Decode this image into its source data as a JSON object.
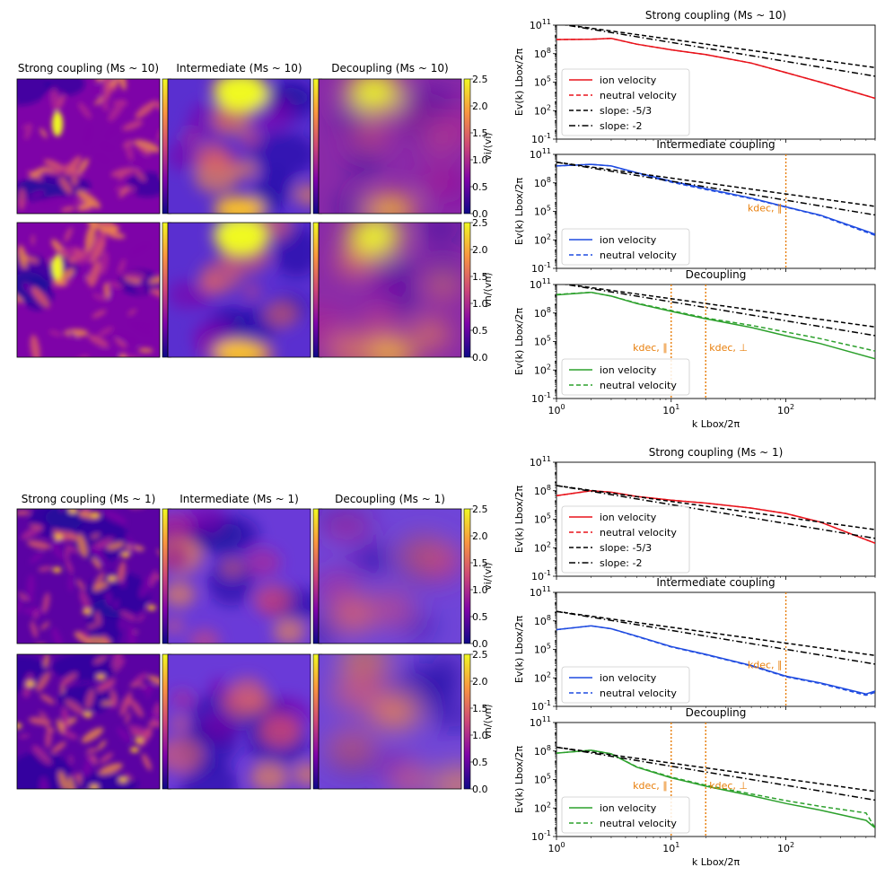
{
  "colors": {
    "ion_strong": "#e8141c",
    "ion_intermediate": "#1f4be0",
    "ion_decoupling": "#2ca02c",
    "slope_lines": "#000000",
    "k_dec_marker": "#e87e0a"
  },
  "maps": {
    "groups": [
      {
        "panel_titles": [
          "Strong coupling ($M_s\\sim10$)",
          "Intermediate ($M_s\\sim10$)",
          "Decoupling ($M_s\\sim10$)"
        ],
        "title_text": [
          "Strong coupling (Ms ~ 10)",
          "Intermediate (Ms ~ 10)",
          "Decoupling (Ms ~ 10)"
        ],
        "rows": [
          {
            "quantity": "v_i/<v_i>",
            "label": "vi/⟨vi⟩"
          },
          {
            "quantity": "v_n/<v_n>",
            "label": "vn/⟨vn⟩"
          }
        ],
        "colorbar_ticks": [
          "0.0",
          "0.5",
          "1.0",
          "1.5",
          "2.0",
          "2.5"
        ],
        "colormap": "plasma"
      },
      {
        "title_text": [
          "Strong coupling (Ms ~ 1)",
          "Intermediate (Ms ~ 1)",
          "Decoupling (Ms ~ 1)"
        ],
        "rows": [
          {
            "quantity": "v_i/<v_i>",
            "label": "vi/⟨vi⟩"
          },
          {
            "quantity": "v_n/<v_n>",
            "label": "vn/⟨vn⟩"
          }
        ],
        "colorbar_ticks": [
          "0.0",
          "0.5",
          "1.0",
          "1.5",
          "2.0",
          "2.5"
        ],
        "colormap": "plasma"
      }
    ]
  },
  "chart_data": [
    {
      "type": "line",
      "title": "Strong coupling (Ms ~ 10)",
      "xlabel": "",
      "ylabel": "Ev(k) Lbox/2π",
      "xscale": "log",
      "yscale": "log",
      "xlim": [
        1,
        600
      ],
      "ylim": [
        0.1,
        100000000000.0
      ],
      "y_ticks": [
        "10^11",
        "10^8",
        "10^5",
        "10^2",
        "10^-1"
      ],
      "series": [
        {
          "name": "ion velocity",
          "style": "solid",
          "color": "#e8141c",
          "x": [
            1,
            2,
            3,
            5,
            10,
            20,
            50,
            100,
            200,
            600
          ],
          "y": [
            3000000000.0,
            3300000000.0,
            4000000000.0,
            1000000000.0,
            250000000.0,
            80000000.0,
            10000000.0,
            1000000.0,
            100000.0,
            2000.0
          ]
        },
        {
          "name": "neutral velocity",
          "style": "dashed",
          "color": "#e8141c",
          "x": [
            1,
            2,
            3,
            5,
            10,
            20,
            50,
            100,
            200,
            600
          ],
          "y": [
            3000000000.0,
            3300000000.0,
            4000000000.0,
            1000000000.0,
            250000000.0,
            80000000.0,
            10000000.0,
            1000000.0,
            100000.0,
            2000.0
          ]
        },
        {
          "name": "slope: -5/3",
          "style": "dashed",
          "color": "#000000",
          "x": [
            1,
            600
          ],
          "y": [
            150000000000.0,
            3400000.0
          ]
        },
        {
          "name": "slope: -2",
          "style": "dashdot",
          "color": "#000000",
          "x": [
            1,
            600
          ],
          "y": [
            150000000000.0,
            420000.0
          ]
        }
      ],
      "legend": [
        "ion velocity",
        "neutral velocity",
        "slope: -5/3",
        "slope: -2"
      ],
      "legend_loc": "lower-left",
      "vlines": []
    },
    {
      "type": "line",
      "title": "Intermediate coupling",
      "xlabel": "",
      "ylabel": "Ev(k) Lbox/2π",
      "xscale": "log",
      "yscale": "log",
      "xlim": [
        1,
        600
      ],
      "ylim": [
        0.1,
        100000000000.0
      ],
      "y_ticks": [
        "10^11",
        "10^8",
        "10^5",
        "10^2",
        "10^-1"
      ],
      "series": [
        {
          "name": "ion velocity",
          "style": "solid",
          "color": "#1f4be0",
          "x": [
            1,
            2,
            3,
            5,
            10,
            20,
            50,
            100,
            200,
            600
          ],
          "y": [
            6000000000.0,
            9000000000.0,
            6000000000.0,
            1200000000.0,
            150000000.0,
            25000000.0,
            2500000.0,
            300000.0,
            40000.0,
            400.0
          ]
        },
        {
          "name": "neutral velocity",
          "style": "dashed",
          "color": "#1f4be0",
          "x": [
            1,
            2,
            3,
            5,
            10,
            20,
            50,
            100,
            200,
            600
          ],
          "y": [
            6000000000.0,
            9000000000.0,
            6000000000.0,
            1000000000.0,
            120000000.0,
            20000000.0,
            2200000.0,
            280000.0,
            35000.0,
            300.0
          ]
        },
        {
          "name": "slope: -5/3",
          "style": "dashed",
          "color": "#000000",
          "x": [
            1,
            600
          ],
          "y": [
            15000000000.0,
            340000.0
          ]
        },
        {
          "name": "slope: -2",
          "style": "dashdot",
          "color": "#000000",
          "x": [
            1,
            600
          ],
          "y": [
            15000000000.0,
            42000.0
          ]
        }
      ],
      "legend": [
        "ion velocity",
        "neutral velocity"
      ],
      "legend_loc": "lower-left",
      "vlines": [
        {
          "x": 100,
          "label": "kdec, ∥"
        }
      ]
    },
    {
      "type": "line",
      "title": "Decoupling",
      "xlabel": "k Lbox/2π",
      "ylabel": "Ev(k) Lbox/2π",
      "xscale": "log",
      "yscale": "log",
      "xlim": [
        1,
        600
      ],
      "ylim": [
        0.1,
        100000000000.0
      ],
      "y_ticks": [
        "10^11",
        "10^8",
        "10^5",
        "10^2",
        "10^-1"
      ],
      "x_ticks": [
        "10^0",
        "10^1",
        "10^2"
      ],
      "series": [
        {
          "name": "ion velocity",
          "style": "solid",
          "color": "#2ca02c",
          "x": [
            1,
            2,
            3,
            5,
            10,
            20,
            50,
            100,
            200,
            600
          ],
          "y": [
            8000000000.0,
            15000000000.0,
            6000000000.0,
            1000000000.0,
            150000000.0,
            25000000.0,
            3000000.0,
            400000.0,
            60000.0,
            1500.0
          ]
        },
        {
          "name": "neutral velocity",
          "style": "dashed",
          "color": "#2ca02c",
          "x": [
            1,
            2,
            3,
            5,
            10,
            20,
            50,
            100,
            200,
            600
          ],
          "y": [
            9000000000.0,
            15000000000.0,
            6000000000.0,
            1100000000.0,
            180000000.0,
            30000000.0,
            5000000.0,
            1000000.0,
            200000.0,
            10000.0
          ]
        },
        {
          "name": "slope: -5/3",
          "style": "dashed",
          "color": "#000000",
          "x": [
            1,
            600
          ],
          "y": [
            150000000000.0,
            3400000.0
          ]
        },
        {
          "name": "slope: -2",
          "style": "dashdot",
          "color": "#000000",
          "x": [
            1,
            600
          ],
          "y": [
            150000000000.0,
            420000.0
          ]
        }
      ],
      "legend": [
        "ion velocity",
        "neutral velocity"
      ],
      "legend_loc": "lower-left",
      "vlines": [
        {
          "x": 10,
          "label": "kdec, ∥"
        },
        {
          "x": 20,
          "label": "kdec, ⊥"
        }
      ]
    },
    {
      "type": "line",
      "title": "Strong coupling (Ms ~ 1)",
      "xlabel": "",
      "ylabel": "Ev(k) Lbox/2π",
      "xscale": "log",
      "yscale": "log",
      "xlim": [
        1,
        600
      ],
      "ylim": [
        0.1,
        100000000000.0
      ],
      "y_ticks": [
        "10^11",
        "10^8",
        "10^5",
        "10^2",
        "10^-1"
      ],
      "series": [
        {
          "name": "ion velocity",
          "style": "solid",
          "color": "#e8141c",
          "x": [
            1,
            2,
            3,
            5,
            10,
            20,
            50,
            100,
            200,
            600
          ],
          "y": [
            30000000.0,
            100000000.0,
            70000000.0,
            25000000.0,
            10000000.0,
            5000000.0,
            1500000.0,
            400000.0,
            50000.0,
            300.0
          ]
        },
        {
          "name": "neutral velocity",
          "style": "dashed",
          "color": "#e8141c",
          "x": [
            1,
            2,
            3,
            5,
            10,
            20,
            50,
            100,
            200,
            600
          ],
          "y": [
            30000000.0,
            100000000.0,
            70000000.0,
            25000000.0,
            10000000.0,
            5000000.0,
            1500000.0,
            400000.0,
            50000.0,
            300.0
          ]
        },
        {
          "name": "slope: -5/3",
          "style": "dashed",
          "color": "#000000",
          "x": [
            1,
            600
          ],
          "y": [
            350000000.0,
            8000.0
          ]
        },
        {
          "name": "slope: -2",
          "style": "dashdot",
          "color": "#000000",
          "x": [
            1,
            600
          ],
          "y": [
            350000000.0,
            970.0
          ]
        }
      ],
      "legend": [
        "ion velocity",
        "neutral velocity",
        "slope: -5/3",
        "slope: -2"
      ],
      "legend_loc": "lower-left",
      "vlines": []
    },
    {
      "type": "line",
      "title": "Intermediate coupling",
      "xlabel": "",
      "ylabel": "Ev(k) Lbox/2π",
      "xscale": "log",
      "yscale": "log",
      "xlim": [
        1,
        600
      ],
      "ylim": [
        0.1,
        100000000000.0
      ],
      "y_ticks": [
        "10^11",
        "10^8",
        "10^5",
        "10^2",
        "10^-1"
      ],
      "series": [
        {
          "name": "ion velocity",
          "style": "solid",
          "color": "#1f4be0",
          "x": [
            1,
            2,
            3,
            5,
            10,
            20,
            50,
            100,
            200,
            500,
            600
          ],
          "y": [
            12000000.0,
            30000000.0,
            15000000.0,
            2500000.0,
            200000.0,
            30000.0,
            2000.0,
            150.0,
            30.0,
            2,
            4
          ]
        },
        {
          "name": "neutral velocity",
          "style": "dashed",
          "color": "#1f4be0",
          "x": [
            1,
            2,
            3,
            5,
            10,
            20,
            50,
            100,
            200,
            500,
            600
          ],
          "y": [
            12000000.0,
            30000000.0,
            15000000.0,
            2300000.0,
            180000.0,
            27000.0,
            1800.0,
            130.0,
            25.0,
            1.5,
            3
          ]
        },
        {
          "name": "slope: -5/3",
          "style": "dashed",
          "color": "#000000",
          "x": [
            1,
            600
          ],
          "y": [
            1000000000.0,
            23000.0
          ]
        },
        {
          "name": "slope: -2",
          "style": "dashdot",
          "color": "#000000",
          "x": [
            1,
            600
          ],
          "y": [
            1000000000.0,
            2800.0
          ]
        }
      ],
      "legend": [
        "ion velocity",
        "neutral velocity"
      ],
      "legend_loc": "lower-left",
      "vlines": [
        {
          "x": 100,
          "label": "kdec, ∥"
        }
      ]
    },
    {
      "type": "line",
      "title": "Decoupling",
      "xlabel": "k Lbox/2π",
      "ylabel": "Ev(k) Lbox/2π",
      "xscale": "log",
      "yscale": "log",
      "xlim": [
        1,
        600
      ],
      "ylim": [
        0.1,
        100000000000.0
      ],
      "y_ticks": [
        "10^11",
        "10^8",
        "10^5",
        "10^2",
        "10^-1"
      ],
      "x_ticks": [
        "10^0",
        "10^1",
        "10^2"
      ],
      "series": [
        {
          "name": "ion velocity",
          "style": "solid",
          "color": "#2ca02c",
          "x": [
            1,
            2,
            3,
            5,
            10,
            20,
            50,
            100,
            200,
            500,
            600
          ],
          "y": [
            60000000.0,
            120000000.0,
            50000000.0,
            2000000.0,
            150000.0,
            20000.0,
            2000.0,
            300.0,
            60.0,
            5,
            0.8
          ]
        },
        {
          "name": "neutral velocity",
          "style": "dashed",
          "color": "#2ca02c",
          "x": [
            1,
            2,
            3,
            5,
            10,
            20,
            50,
            100,
            200,
            500,
            600
          ],
          "y": [
            60000000.0,
            120000000.0,
            50000000.0,
            2200000.0,
            180000.0,
            25000.0,
            3000.0,
            600.0,
            150.0,
            30.0,
            0.8
          ]
        },
        {
          "name": "slope: -5/3",
          "style": "dashed",
          "color": "#000000",
          "x": [
            1,
            600
          ],
          "y": [
            250000000.0,
            5700.0
          ]
        },
        {
          "name": "slope: -2",
          "style": "dashdot",
          "color": "#000000",
          "x": [
            1,
            600
          ],
          "y": [
            250000000.0,
            690.0
          ]
        }
      ],
      "legend": [
        "ion velocity",
        "neutral velocity"
      ],
      "legend_loc": "lower-left",
      "vlines": [
        {
          "x": 10,
          "label": "kdec, ∥"
        },
        {
          "x": 20,
          "label": "kdec, ⊥"
        }
      ]
    }
  ]
}
